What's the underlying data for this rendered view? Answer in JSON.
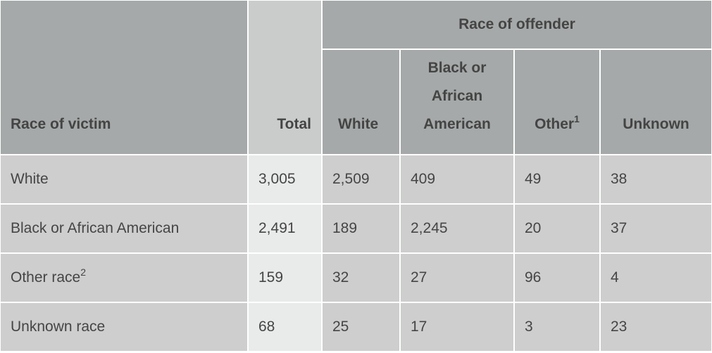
{
  "table": {
    "group_header": "Race of offender",
    "header": [
      {
        "text": "Race of victim"
      },
      {
        "text": "Total"
      },
      {
        "text": "White"
      },
      {
        "text": "Black or African American"
      },
      {
        "text": "Other",
        "note": "1"
      },
      {
        "text": "Unknown"
      }
    ],
    "rows": [
      {
        "label": "White",
        "values": [
          "3,005",
          "2,509",
          "409",
          "49",
          "38"
        ]
      },
      {
        "label": "Black or African American",
        "values": [
          "2,491",
          "189",
          "2,245",
          "20",
          "37"
        ]
      },
      {
        "label": "Other race",
        "note": "2",
        "values": [
          "159",
          "32",
          "27",
          "96",
          "4"
        ]
      },
      {
        "label": "Unknown race",
        "values": [
          "68",
          "25",
          "17",
          "3",
          "23"
        ]
      }
    ]
  }
}
